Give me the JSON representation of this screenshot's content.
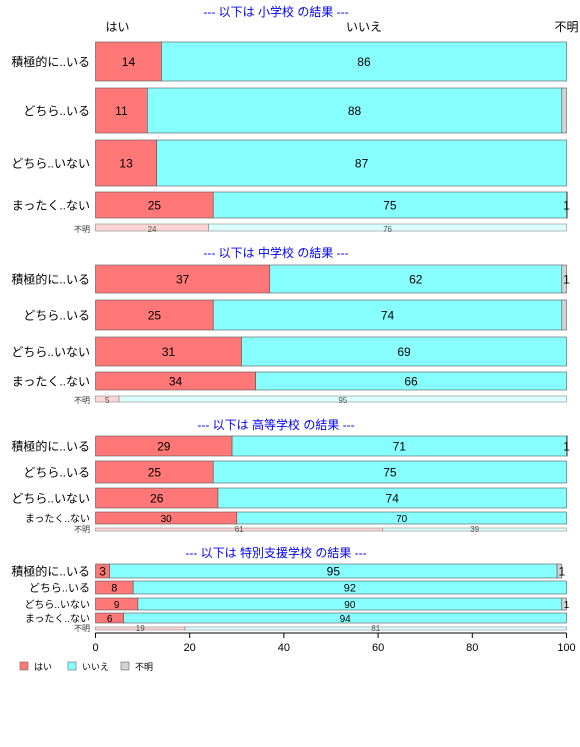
{
  "chart_data": {
    "type": "bar",
    "orientation": "horizontal",
    "stacked": true,
    "xlim": [
      0,
      100
    ],
    "x_ticks": [
      0,
      20,
      40,
      60,
      80,
      100
    ],
    "column_headers": [
      "はい",
      "いいえ",
      "不明"
    ],
    "legend": {
      "position": "bottom-left",
      "entries": [
        {
          "label": "はい",
          "color": "#ff7777"
        },
        {
          "label": "いいえ",
          "color": "#88ffff"
        },
        {
          "label": "不明",
          "color": "#d3d3d3"
        }
      ]
    },
    "series_colors": {
      "はい": "#ff7777",
      "いいえ": "#88ffff",
      "不明": "#d3d3d3"
    },
    "title_color": "#0000ff",
    "panels": [
      {
        "title": "--- 以下は 小学校 の結果 ---",
        "rows": [
          {
            "label": "積極的に..いる",
            "values": [
              14,
              86,
              0
            ],
            "value_labels": [
              "14",
              "86",
              ""
            ]
          },
          {
            "label": "どちら..いる",
            "values": [
              11,
              88,
              1
            ],
            "value_labels": [
              "11",
              "88",
              ""
            ]
          },
          {
            "label": "どちら..いない",
            "values": [
              13,
              87,
              0
            ],
            "value_labels": [
              "13",
              "87",
              ""
            ]
          },
          {
            "label": "まったく..ない",
            "values": [
              25,
              75,
              1
            ],
            "value_labels": [
              "25",
              "75",
              "1"
            ]
          }
        ],
        "unknown_row": {
          "label": "不明",
          "values": [
            24,
            76,
            0
          ],
          "value_labels": [
            "24",
            "76",
            ""
          ]
        }
      },
      {
        "title": "--- 以下は 中学校 の結果 ---",
        "rows": [
          {
            "label": "積極的に..いる",
            "values": [
              37,
              62,
              1
            ],
            "value_labels": [
              "37",
              "62",
              "1"
            ]
          },
          {
            "label": "どちら..いる",
            "values": [
              25,
              74,
              1
            ],
            "value_labels": [
              "25",
              "74",
              ""
            ]
          },
          {
            "label": "どちら..いない",
            "values": [
              31,
              69,
              0
            ],
            "value_labels": [
              "31",
              "69",
              ""
            ]
          },
          {
            "label": "まったく..ない",
            "values": [
              34,
              66,
              0
            ],
            "value_labels": [
              "34",
              "66",
              ""
            ]
          }
        ],
        "unknown_row": {
          "label": "不明",
          "values": [
            5,
            95,
            0
          ],
          "value_labels": [
            "5",
            "95",
            ""
          ]
        }
      },
      {
        "title": "--- 以下は 高等学校 の結果 ---",
        "rows": [
          {
            "label": "積極的に..いる",
            "values": [
              29,
              71,
              1
            ],
            "value_labels": [
              "29",
              "71",
              "1"
            ]
          },
          {
            "label": "どちら..いる",
            "values": [
              25,
              75,
              0
            ],
            "value_labels": [
              "25",
              "75",
              ""
            ]
          },
          {
            "label": "どちら..いない",
            "values": [
              26,
              74,
              0
            ],
            "value_labels": [
              "26",
              "74",
              ""
            ]
          },
          {
            "label": "まったく..ない",
            "values": [
              30,
              70,
              0
            ],
            "value_labels": [
              "30",
              "70",
              ""
            ]
          }
        ],
        "unknown_row": {
          "label": "不明",
          "values": [
            61,
            39,
            0
          ],
          "value_labels": [
            "61",
            "39",
            ""
          ]
        }
      },
      {
        "title": "--- 以下は 特別支援学校 の結果 ---",
        "rows": [
          {
            "label": "積極的に..いる",
            "values": [
              3,
              95,
              1
            ],
            "value_labels": [
              "3",
              "95",
              "1"
            ]
          },
          {
            "label": "どちら..いる",
            "values": [
              8,
              92,
              0
            ],
            "value_labels": [
              "8",
              "92",
              ""
            ]
          },
          {
            "label": "どちら..いない",
            "values": [
              9,
              90,
              1
            ],
            "value_labels": [
              "9",
              "90",
              "1"
            ]
          },
          {
            "label": "まったく..ない",
            "values": [
              6,
              94,
              0
            ],
            "value_labels": [
              "6",
              "94",
              ""
            ]
          }
        ],
        "unknown_row": {
          "label": "不明",
          "values": [
            19,
            81,
            0
          ],
          "value_labels": [
            "19",
            "81",
            ""
          ]
        }
      }
    ]
  }
}
